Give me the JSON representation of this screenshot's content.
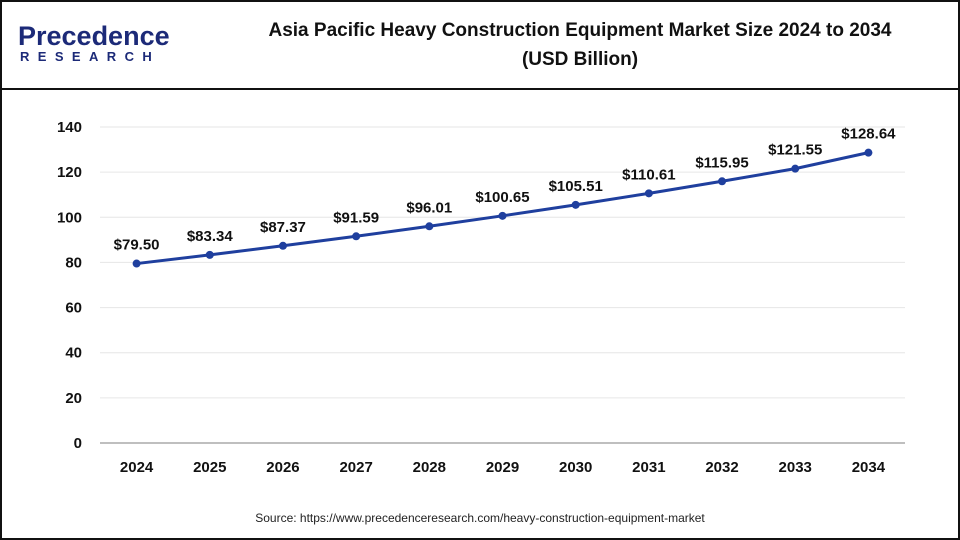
{
  "logo": {
    "top": "Precedence",
    "bottom": "RESEARCH"
  },
  "header": {
    "title_line1": "Asia Pacific Heavy Construction Equipment Market Size 2024 to 2034",
    "title_line2": "(USD Billion)"
  },
  "source": "Source: https://www.precedenceresearch.com/heavy-construction-equipment-market",
  "chart_data": {
    "type": "line",
    "title": "Asia Pacific Heavy Construction Equipment Market Size 2024 to 2034 (USD Billion)",
    "categories": [
      "2024",
      "2025",
      "2026",
      "2027",
      "2028",
      "2029",
      "2030",
      "2031",
      "2032",
      "2033",
      "2034"
    ],
    "values": [
      79.5,
      83.34,
      87.37,
      91.59,
      96.01,
      100.65,
      105.51,
      110.61,
      115.95,
      121.55,
      128.64
    ],
    "data_labels": [
      "$79.50",
      "$83.34",
      "$87.37",
      "$91.59",
      "$96.01",
      "$100.65",
      "$105.51",
      "$110.61",
      "$115.95",
      "$121.55",
      "$128.64"
    ],
    "yticks": [
      0,
      20,
      40,
      60,
      80,
      100,
      120,
      140
    ],
    "ylim": [
      0,
      140
    ],
    "grid": true,
    "line_color": "#1f3f9e"
  }
}
